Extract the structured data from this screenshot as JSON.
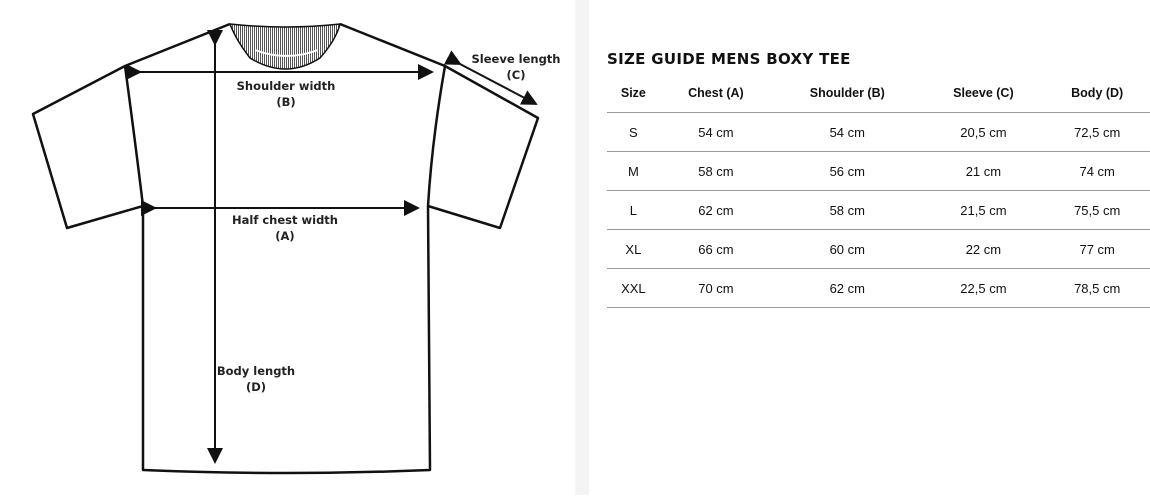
{
  "diagram": {
    "shoulder_label": "Shoulder width",
    "shoulder_code": "(B)",
    "chest_label": "Half chest width",
    "chest_code": "(A)",
    "sleeve_label": "Sleeve length",
    "sleeve_code": "(C)",
    "body_label": "Body length",
    "body_code": "(D)"
  },
  "guide": {
    "title": "SIZE GUIDE MENS BOXY TEE",
    "columns": [
      "Size",
      "Chest (A)",
      "Shoulder (B)",
      "Sleeve (C)",
      "Body (D)"
    ],
    "rows": [
      [
        "S",
        "54 cm",
        "54 cm",
        "20,5 cm",
        "72,5 cm"
      ],
      [
        "M",
        "58 cm",
        "56 cm",
        "21 cm",
        "74 cm"
      ],
      [
        "L",
        "62 cm",
        "58 cm",
        "21,5 cm",
        "75,5 cm"
      ],
      [
        "XL",
        "66 cm",
        "60 cm",
        "22 cm",
        "77 cm"
      ],
      [
        "XXL",
        "70 cm",
        "62 cm",
        "22,5 cm",
        "78,5 cm"
      ]
    ]
  }
}
